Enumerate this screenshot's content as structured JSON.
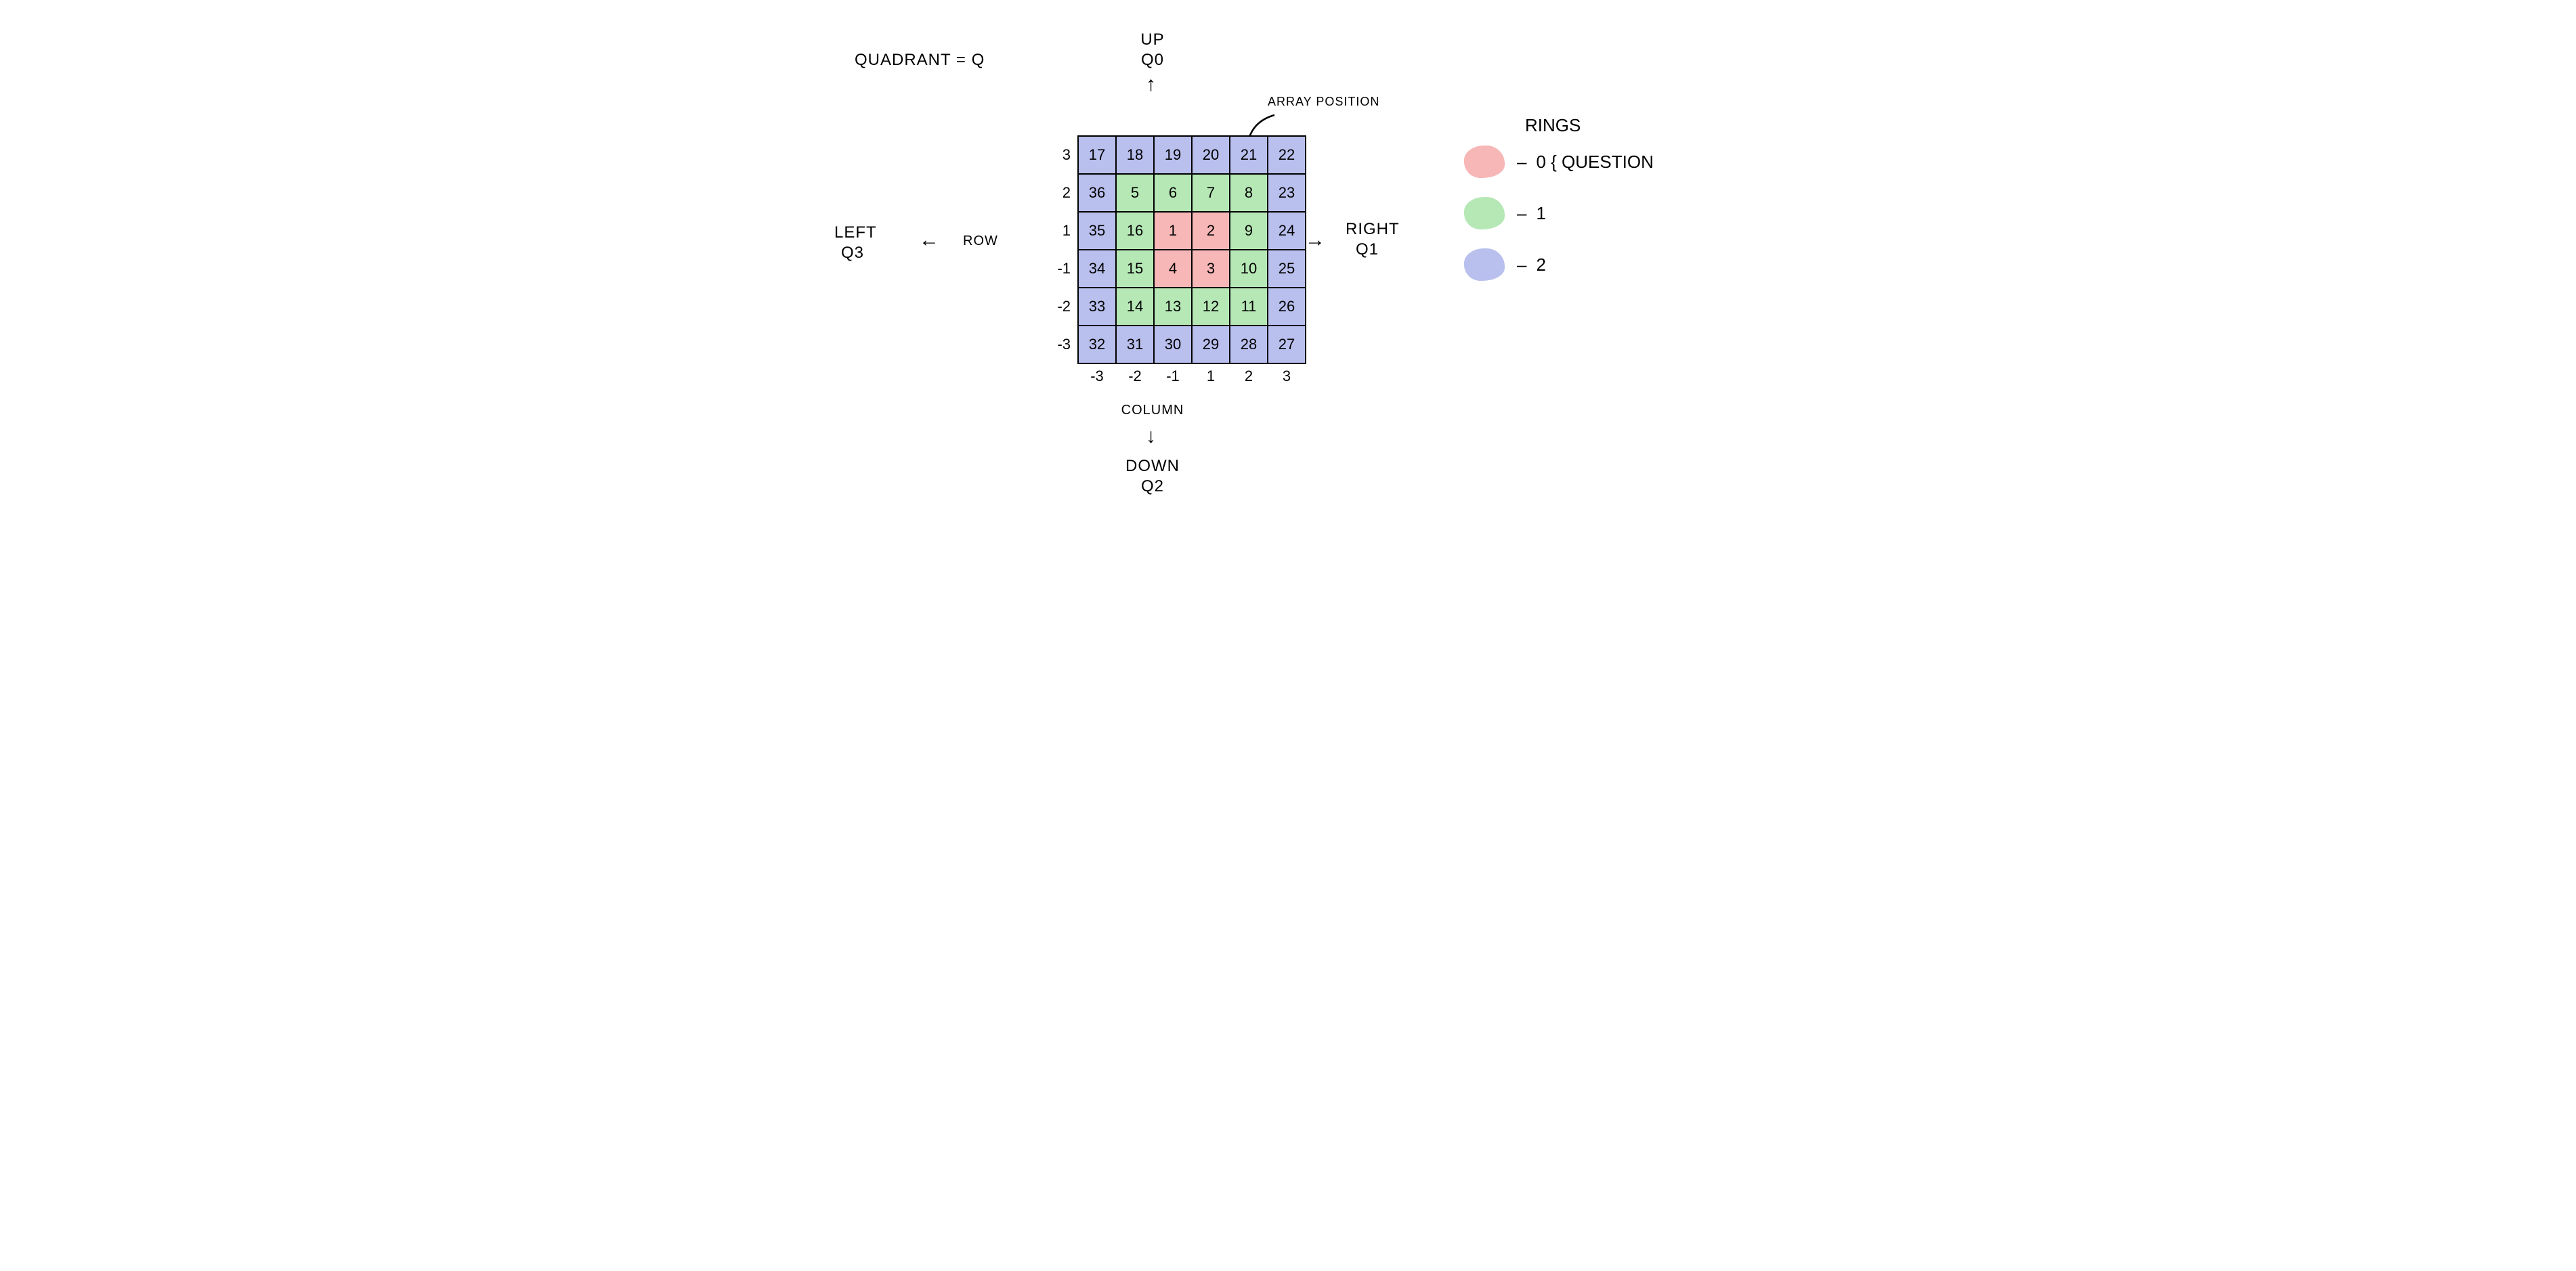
{
  "colors": {
    "ring0": "#f6b7b6",
    "ring1": "#b6e8b6",
    "ring2": "#b9c0ee",
    "border": "#000000",
    "text": "#000000",
    "background": "#ffffff"
  },
  "typography": {
    "font_family": "Comic Sans MS / handwritten",
    "label_fontsize": 24,
    "cell_fontsize": 22,
    "legend_fontsize": 26
  },
  "labels": {
    "quadrant_eq": "QUADRANT = Q",
    "up": "UP",
    "q0": "Q0",
    "down": "DOWN",
    "q2": "Q2",
    "left": "LEFT",
    "q3": "Q3",
    "right": "RIGHT",
    "q1": "Q1",
    "row": "ROW",
    "column": "COLUMN",
    "array_position": "ARRAY POSITION"
  },
  "legend": {
    "title": "RINGS",
    "items": [
      {
        "color_key": "ring0",
        "text": "0 { QUESTION"
      },
      {
        "color_key": "ring1",
        "text": "1"
      },
      {
        "color_key": "ring2",
        "text": "2"
      }
    ]
  },
  "grid": {
    "type": "table",
    "size": 6,
    "row_labels": [
      "3",
      "2",
      "1",
      "-1",
      "-2",
      "-3"
    ],
    "col_labels": [
      "-3",
      "-2",
      "-1",
      "1",
      "2",
      "3"
    ],
    "cells": [
      {
        "r": 0,
        "c": 0,
        "v": "17",
        "ring": 2
      },
      {
        "r": 0,
        "c": 1,
        "v": "18",
        "ring": 2
      },
      {
        "r": 0,
        "c": 2,
        "v": "19",
        "ring": 2
      },
      {
        "r": 0,
        "c": 3,
        "v": "20",
        "ring": 2
      },
      {
        "r": 0,
        "c": 4,
        "v": "21",
        "ring": 2
      },
      {
        "r": 0,
        "c": 5,
        "v": "22",
        "ring": 2
      },
      {
        "r": 1,
        "c": 0,
        "v": "36",
        "ring": 2
      },
      {
        "r": 1,
        "c": 1,
        "v": "5",
        "ring": 1
      },
      {
        "r": 1,
        "c": 2,
        "v": "6",
        "ring": 1
      },
      {
        "r": 1,
        "c": 3,
        "v": "7",
        "ring": 1
      },
      {
        "r": 1,
        "c": 4,
        "v": "8",
        "ring": 1
      },
      {
        "r": 1,
        "c": 5,
        "v": "23",
        "ring": 2
      },
      {
        "r": 2,
        "c": 0,
        "v": "35",
        "ring": 2
      },
      {
        "r": 2,
        "c": 1,
        "v": "16",
        "ring": 1
      },
      {
        "r": 2,
        "c": 2,
        "v": "1",
        "ring": 0
      },
      {
        "r": 2,
        "c": 3,
        "v": "2",
        "ring": 0
      },
      {
        "r": 2,
        "c": 4,
        "v": "9",
        "ring": 1
      },
      {
        "r": 2,
        "c": 5,
        "v": "24",
        "ring": 2
      },
      {
        "r": 3,
        "c": 0,
        "v": "34",
        "ring": 2
      },
      {
        "r": 3,
        "c": 1,
        "v": "15",
        "ring": 1
      },
      {
        "r": 3,
        "c": 2,
        "v": "4",
        "ring": 0
      },
      {
        "r": 3,
        "c": 3,
        "v": "3",
        "ring": 0
      },
      {
        "r": 3,
        "c": 4,
        "v": "10",
        "ring": 1
      },
      {
        "r": 3,
        "c": 5,
        "v": "25",
        "ring": 2
      },
      {
        "r": 4,
        "c": 0,
        "v": "33",
        "ring": 2
      },
      {
        "r": 4,
        "c": 1,
        "v": "14",
        "ring": 1
      },
      {
        "r": 4,
        "c": 2,
        "v": "13",
        "ring": 1
      },
      {
        "r": 4,
        "c": 3,
        "v": "12",
        "ring": 1
      },
      {
        "r": 4,
        "c": 4,
        "v": "11",
        "ring": 1
      },
      {
        "r": 4,
        "c": 5,
        "v": "26",
        "ring": 2
      },
      {
        "r": 5,
        "c": 0,
        "v": "32",
        "ring": 2
      },
      {
        "r": 5,
        "c": 1,
        "v": "31",
        "ring": 2
      },
      {
        "r": 5,
        "c": 2,
        "v": "30",
        "ring": 2
      },
      {
        "r": 5,
        "c": 3,
        "v": "29",
        "ring": 2
      },
      {
        "r": 5,
        "c": 4,
        "v": "28",
        "ring": 2
      },
      {
        "r": 5,
        "c": 5,
        "v": "27",
        "ring": 2
      }
    ]
  },
  "arrows": {
    "up": "↑",
    "down": "↓",
    "left": "←",
    "right": "→"
  }
}
